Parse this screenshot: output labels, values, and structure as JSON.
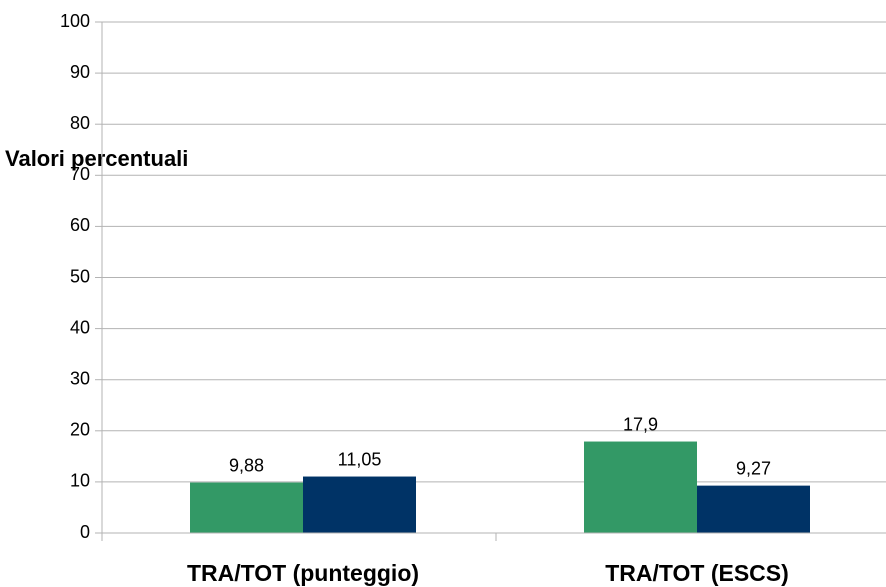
{
  "chart_data": {
    "type": "bar",
    "ylabel": "Valori percentuali",
    "categories": [
      "TRA/TOT (punteggio)",
      "TRA/TOT (ESCS)"
    ],
    "series": [
      {
        "color": "#339966",
        "values": [
          9.88,
          17.9
        ],
        "value_labels": [
          "9,88",
          "17,9"
        ]
      },
      {
        "color": "#003366",
        "values": [
          11.05,
          9.27
        ],
        "value_labels": [
          "11,05",
          "9,27"
        ]
      }
    ],
    "ylim": [
      0,
      100
    ],
    "yticks": [
      0,
      10,
      20,
      30,
      40,
      50,
      60,
      70,
      80,
      90,
      100
    ],
    "grid": true
  }
}
